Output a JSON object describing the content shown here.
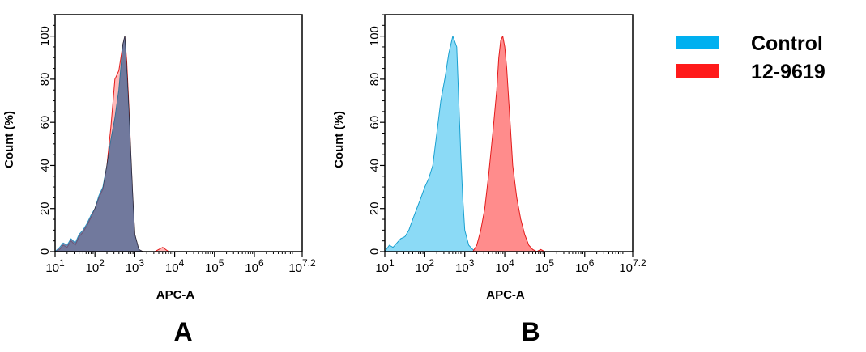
{
  "legend": [
    {
      "label": "Control",
      "color": "#00b0f0"
    },
    {
      "label": "12-9619",
      "color": "#ff1a1a"
    }
  ],
  "chart_data": [
    {
      "type": "area",
      "panel_label": "A",
      "xlabel": "APC-A",
      "ylabel": "Count  (%)",
      "x_scale": "log10",
      "xlim": [
        10,
        15848932
      ],
      "ylim": [
        0,
        110
      ],
      "xticks": [
        {
          "value": 10,
          "base": "10",
          "exp": "1"
        },
        {
          "value": 100,
          "base": "10",
          "exp": "2"
        },
        {
          "value": 1000,
          "base": "10",
          "exp": "3"
        },
        {
          "value": 10000,
          "base": "10",
          "exp": "4"
        },
        {
          "value": 100000,
          "base": "10",
          "exp": "5"
        },
        {
          "value": 1000000,
          "base": "10",
          "exp": "6"
        },
        {
          "value": 15848932,
          "base": "10",
          "exp": "7.2"
        }
      ],
      "yticks": [
        0,
        20,
        40,
        60,
        80,
        100
      ],
      "series": [
        {
          "name": "Control",
          "fill": "#7ed6f5",
          "stroke": "#18a0d0",
          "x": [
            10,
            13,
            16,
            20,
            25,
            32,
            40,
            50,
            63,
            80,
            100,
            126,
            158,
            200,
            251,
            316,
            398,
            501,
            562,
            631,
            708,
            794,
            891,
            1000,
            1259,
            1585
          ],
          "y": [
            0,
            2,
            4,
            3,
            6,
            4,
            8,
            10,
            13,
            17,
            20,
            26,
            30,
            40,
            52,
            62,
            75,
            96,
            100,
            84,
            66,
            45,
            25,
            8,
            1,
            0
          ]
        },
        {
          "name": "12-9619",
          "fill": "#ff8080",
          "stroke": "#e31a1a",
          "x": [
            10,
            13,
            16,
            20,
            25,
            32,
            40,
            50,
            63,
            80,
            100,
            126,
            158,
            200,
            251,
            316,
            398,
            501,
            562,
            631,
            708,
            794,
            891,
            1000,
            1259,
            1585,
            3162,
            5012,
            7079,
            10000
          ],
          "y": [
            0,
            1,
            3,
            2,
            5,
            3,
            7,
            9,
            12,
            16,
            20,
            25,
            29,
            40,
            58,
            80,
            84,
            96,
            100,
            88,
            68,
            45,
            25,
            8,
            1,
            0,
            0,
            2,
            0,
            0
          ]
        }
      ]
    },
    {
      "type": "area",
      "panel_label": "B",
      "xlabel": "APC-A",
      "ylabel": "Count  (%)",
      "x_scale": "log10",
      "xlim": [
        10,
        15848932
      ],
      "ylim": [
        0,
        110
      ],
      "xticks": [
        {
          "value": 10,
          "base": "10",
          "exp": "1"
        },
        {
          "value": 100,
          "base": "10",
          "exp": "2"
        },
        {
          "value": 1000,
          "base": "10",
          "exp": "3"
        },
        {
          "value": 10000,
          "base": "10",
          "exp": "4"
        },
        {
          "value": 100000,
          "base": "10",
          "exp": "5"
        },
        {
          "value": 1000000,
          "base": "10",
          "exp": "6"
        },
        {
          "value": 15848932,
          "base": "10",
          "exp": "7.2"
        }
      ],
      "yticks": [
        0,
        20,
        40,
        60,
        80,
        100
      ],
      "series": [
        {
          "name": "Control",
          "fill": "#7ed6f5",
          "stroke": "#18a0d0",
          "x": [
            10,
            13,
            16,
            20,
            25,
            32,
            40,
            50,
            63,
            80,
            100,
            126,
            158,
            200,
            251,
            316,
            398,
            501,
            631,
            708,
            794,
            891,
            1000,
            1259,
            1585,
            1995
          ],
          "y": [
            0,
            3,
            2,
            4,
            6,
            7,
            10,
            15,
            20,
            25,
            30,
            34,
            40,
            55,
            70,
            80,
            92,
            100,
            95,
            70,
            45,
            25,
            10,
            3,
            1,
            0
          ]
        },
        {
          "name": "12-9619",
          "fill": "#ff8080",
          "stroke": "#e31a1a",
          "x": [
            1585,
            2000,
            2512,
            3162,
            3981,
            5012,
            6310,
            7079,
            7943,
            8913,
            10000,
            11220,
            12589,
            14125,
            15849,
            19953,
            25119,
            31623,
            39811,
            50119,
            63096,
            79433,
            100000
          ],
          "y": [
            0,
            3,
            10,
            20,
            36,
            55,
            75,
            90,
            98,
            100,
            95,
            85,
            70,
            55,
            40,
            25,
            15,
            8,
            3,
            1,
            0,
            1,
            0
          ]
        }
      ]
    }
  ]
}
